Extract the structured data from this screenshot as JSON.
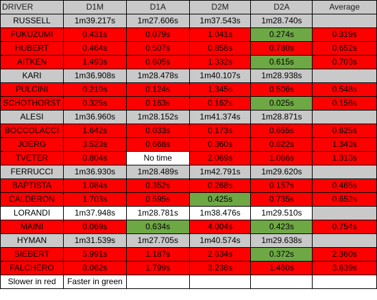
{
  "header": {
    "driver": "DRIVER",
    "d1m": "D1M",
    "d1a": "D1A",
    "d2m": "D2M",
    "d2a": "D2A",
    "average": "Average"
  },
  "colors": {
    "slower": "#ff0000",
    "faster": "#6ea845",
    "reference": "#c9c9c9",
    "neutral": "#ffffff"
  },
  "rows": [
    {
      "driver": "RUSSELL",
      "cells": [
        {
          "v": "1m39.217s",
          "c": "grey"
        },
        {
          "v": "1m27.606s",
          "c": "grey"
        },
        {
          "v": "1m37.543s",
          "c": "grey"
        },
        {
          "v": "1m28.740s",
          "c": "grey"
        },
        {
          "v": "",
          "c": "grey"
        }
      ]
    },
    {
      "driver": "FUKUZUMI",
      "cells": [
        {
          "v": "0.431s",
          "c": "red"
        },
        {
          "v": "0.079s",
          "c": "red"
        },
        {
          "v": "1.041s",
          "c": "red"
        },
        {
          "v": "0.274s",
          "c": "green"
        },
        {
          "v": "0.319s",
          "c": "red"
        }
      ]
    },
    {
      "driver": "HUBERT",
      "cells": [
        {
          "v": "0.464s",
          "c": "red"
        },
        {
          "v": "0.507s",
          "c": "red"
        },
        {
          "v": "0.858s",
          "c": "red"
        },
        {
          "v": "0.780s",
          "c": "red"
        },
        {
          "v": "0.652s",
          "c": "red"
        }
      ]
    },
    {
      "driver": "AITKEN",
      "cells": [
        {
          "v": "1.493s",
          "c": "red"
        },
        {
          "v": "0.605s",
          "c": "red"
        },
        {
          "v": "1.332s",
          "c": "red"
        },
        {
          "v": "0.615s",
          "c": "green"
        },
        {
          "v": "0.703s",
          "c": "red"
        }
      ]
    },
    {
      "driver": "KARI",
      "cells": [
        {
          "v": "1m36.908s",
          "c": "grey"
        },
        {
          "v": "1m28.478s",
          "c": "grey"
        },
        {
          "v": "1m40.107s",
          "c": "grey"
        },
        {
          "v": "1m28.938s",
          "c": "grey"
        },
        {
          "v": "",
          "c": "grey"
        }
      ]
    },
    {
      "driver": "PULCINI",
      "cells": [
        {
          "v": "0.219s",
          "c": "red"
        },
        {
          "v": "0.124s",
          "c": "red"
        },
        {
          "v": "1.345s",
          "c": "red"
        },
        {
          "v": "0.506s",
          "c": "red"
        },
        {
          "v": "0.548s",
          "c": "red"
        }
      ]
    },
    {
      "driver": "SCHOTHORST",
      "cells": [
        {
          "v": "0.325s",
          "c": "red"
        },
        {
          "v": "0.163s",
          "c": "red"
        },
        {
          "v": "0.162s",
          "c": "red"
        },
        {
          "v": "0.025s",
          "c": "green"
        },
        {
          "v": "0.156s",
          "c": "red"
        }
      ]
    },
    {
      "driver": "ALESI",
      "cells": [
        {
          "v": "1m36.960s",
          "c": "grey"
        },
        {
          "v": "1m28.152s",
          "c": "grey"
        },
        {
          "v": "1m41.374s",
          "c": "grey"
        },
        {
          "v": "1m28.871s",
          "c": "grey"
        },
        {
          "v": "",
          "c": "grey"
        }
      ]
    },
    {
      "driver": "BOCCOLACCI",
      "cells": [
        {
          "v": "1.642s",
          "c": "red"
        },
        {
          "v": "0.033s",
          "c": "red"
        },
        {
          "v": "0.173s",
          "c": "red"
        },
        {
          "v": "0.655s",
          "c": "red"
        },
        {
          "v": "0.625s",
          "c": "red"
        }
      ]
    },
    {
      "driver": "JOERG",
      "cells": [
        {
          "v": "3.523s",
          "c": "red"
        },
        {
          "v": "0.668s",
          "c": "red"
        },
        {
          "v": "0.360s",
          "c": "red"
        },
        {
          "v": "0.822s",
          "c": "red"
        },
        {
          "v": "1.343s",
          "c": "red"
        }
      ]
    },
    {
      "driver": "TVETER",
      "cells": [
        {
          "v": "0.804s",
          "c": "red"
        },
        {
          "v": "No time",
          "c": "white"
        },
        {
          "v": "2.069s",
          "c": "red"
        },
        {
          "v": "1.066s",
          "c": "red"
        },
        {
          "v": "1.313s",
          "c": "red"
        }
      ]
    },
    {
      "driver": "FERRUCCI",
      "cells": [
        {
          "v": "1m36.930s",
          "c": "grey"
        },
        {
          "v": "1m28.489s",
          "c": "grey"
        },
        {
          "v": "1m42.791s",
          "c": "grey"
        },
        {
          "v": "1m29.620s",
          "c": "grey"
        },
        {
          "v": "",
          "c": "grey"
        }
      ]
    },
    {
      "driver": "BAPTISTA",
      "cells": [
        {
          "v": "1.084s",
          "c": "red"
        },
        {
          "v": "0.352s",
          "c": "red"
        },
        {
          "v": "0.268s",
          "c": "red"
        },
        {
          "v": "0.157s",
          "c": "red"
        },
        {
          "v": "0.465s",
          "c": "red"
        }
      ]
    },
    {
      "driver": "CALDERON",
      "cells": [
        {
          "v": "1.703s",
          "c": "red"
        },
        {
          "v": "0.595s",
          "c": "red"
        },
        {
          "v": "0.425s",
          "c": "green"
        },
        {
          "v": "0.735s",
          "c": "red"
        },
        {
          "v": "0.652s",
          "c": "red"
        }
      ]
    },
    {
      "driver": "LORANDI",
      "cells": [
        {
          "v": "1m37.948s",
          "c": "white"
        },
        {
          "v": "1m28.781s",
          "c": "white"
        },
        {
          "v": "1m38.476s",
          "c": "white"
        },
        {
          "v": "1m29.510s",
          "c": "white"
        },
        {
          "v": "",
          "c": "grey"
        }
      ]
    },
    {
      "driver": "MAINI",
      "cells": [
        {
          "v": "0.069s",
          "c": "red"
        },
        {
          "v": "0.634s",
          "c": "green"
        },
        {
          "v": "4.004s",
          "c": "red"
        },
        {
          "v": "0.423s",
          "c": "green"
        },
        {
          "v": "0.754s",
          "c": "red"
        }
      ]
    },
    {
      "driver": "HYMAN",
      "cells": [
        {
          "v": "1m31.539s",
          "c": "grey"
        },
        {
          "v": "1m27.705s",
          "c": "grey"
        },
        {
          "v": "1m40.574s",
          "c": "grey"
        },
        {
          "v": "1m29.638s",
          "c": "grey"
        },
        {
          "v": "",
          "c": "grey"
        }
      ]
    },
    {
      "driver": "SIEBERT",
      "cells": [
        {
          "v": "5.991s",
          "c": "red"
        },
        {
          "v": "1.187s",
          "c": "red"
        },
        {
          "v": "2.634s",
          "c": "red"
        },
        {
          "v": "0.372s",
          "c": "green"
        },
        {
          "v": "2.360s",
          "c": "red"
        }
      ]
    },
    {
      "driver": "FALCHERO",
      "cells": [
        {
          "v": "8.062s",
          "c": "red"
        },
        {
          "v": "1.799s",
          "c": "red"
        },
        {
          "v": "3.238s",
          "c": "red"
        },
        {
          "v": "1.460s",
          "c": "red"
        },
        {
          "v": "3.639s",
          "c": "red"
        }
      ]
    }
  ],
  "legend": {
    "slower": "Slower in red",
    "faster": "Faster in green"
  }
}
